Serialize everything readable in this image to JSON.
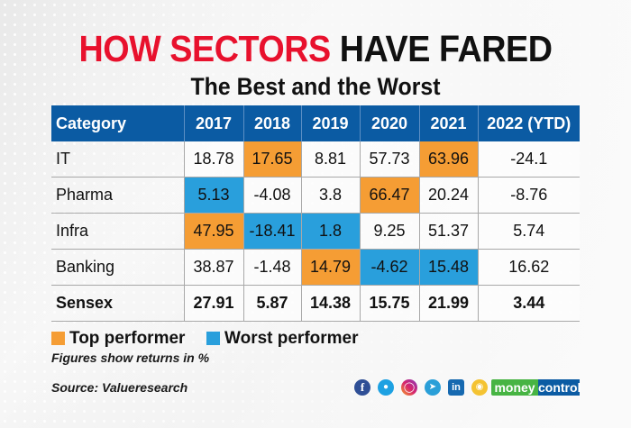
{
  "header": {
    "title_red": "HOW SECTORS",
    "title_black": "HAVE FARED",
    "subtitle": "The Best and the Worst"
  },
  "colors": {
    "title_red": "#e8112d",
    "header_blue": "#0b5ba3",
    "top_performer": "#f59d34",
    "worst_performer": "#299fdc"
  },
  "chart_data": {
    "type": "table",
    "title": "HOW SECTORS HAVE FARED",
    "subtitle": "The Best and the Worst",
    "columns": [
      "Category",
      "2017",
      "2018",
      "2019",
      "2020",
      "2021",
      "2022 (YTD)"
    ],
    "rows": [
      {
        "category": "IT",
        "values": [
          "18.78",
          "17.65",
          "8.81",
          "57.73",
          "63.96",
          "-24.1"
        ],
        "highlight": [
          "",
          "top",
          "",
          "",
          "top",
          ""
        ]
      },
      {
        "category": "Pharma",
        "values": [
          "5.13",
          "-4.08",
          "3.8",
          "66.47",
          "20.24",
          "-8.76"
        ],
        "highlight": [
          "worst",
          "",
          "",
          "top",
          "",
          ""
        ]
      },
      {
        "category": "Infra",
        "values": [
          "47.95",
          "-18.41",
          "1.8",
          "9.25",
          "51.37",
          "5.74"
        ],
        "highlight": [
          "top",
          "worst",
          "worst",
          "",
          "",
          ""
        ]
      },
      {
        "category": "Banking",
        "values": [
          "38.87",
          "-1.48",
          "14.79",
          "-4.62",
          "15.48",
          "16.62"
        ],
        "highlight": [
          "",
          "",
          "top",
          "worst",
          "worst",
          ""
        ]
      },
      {
        "category": "Sensex",
        "values": [
          "27.91",
          "5.87",
          "14.38",
          "15.75",
          "21.99",
          "3.44"
        ],
        "highlight": [
          "",
          "",
          "",
          "",
          "",
          ""
        ],
        "bold": true
      }
    ],
    "legend": [
      {
        "label": "Top performer",
        "color": "#f59d34"
      },
      {
        "label": "Worst performer",
        "color": "#299fdc"
      }
    ],
    "unit": "%"
  },
  "footer": {
    "note": "Figures show returns in %",
    "source": "Source: Valueresearch",
    "social_icons": [
      "facebook-icon",
      "twitter-icon",
      "instagram-icon",
      "telegram-icon",
      "linkedin-icon",
      "koo-icon"
    ],
    "logo_part1": "money",
    "logo_part2": "control"
  }
}
